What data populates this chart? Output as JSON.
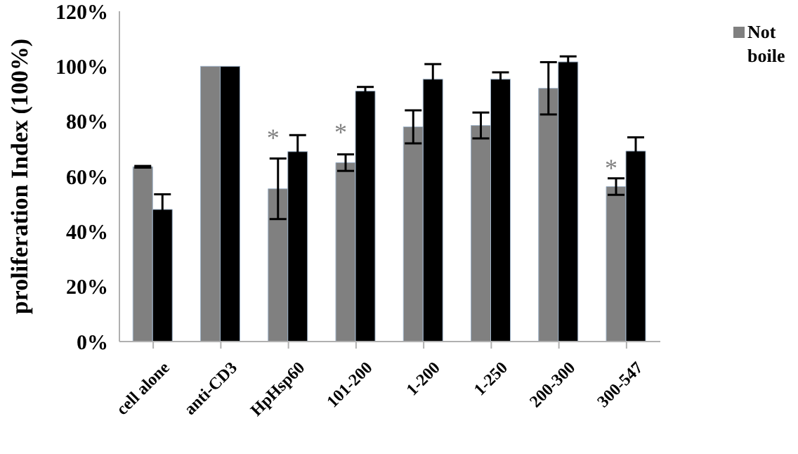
{
  "chart_data": {
    "type": "bar",
    "ylabel": "proliferation Index (100%)",
    "categories": [
      "cell alone",
      "anti-CD3",
      "HpHsp60",
      "101-200",
      "1-200",
      "1-250",
      "200-300",
      "300-547"
    ],
    "series": [
      {
        "name": "Not boile",
        "color": "#808080",
        "values": [
          63.5,
          100,
          55.5,
          65,
          78,
          78.5,
          92,
          56.3
        ],
        "errors": [
          0.3,
          null,
          11,
          3,
          6,
          4.7,
          9.5,
          3
        ]
      },
      {
        "color": "#000000",
        "values": [
          48,
          100,
          69,
          91,
          95.3,
          95.3,
          101.6,
          69.2
        ],
        "errors": [
          5.5,
          null,
          6,
          1.5,
          5.5,
          2.5,
          2,
          5
        ]
      }
    ],
    "ylim": [
      0,
      120
    ],
    "yticks": [
      {
        "value": 0,
        "label": "0%"
      },
      {
        "value": 20,
        "label": "20%"
      },
      {
        "value": 40,
        "label": "40%"
      },
      {
        "value": 60,
        "label": "60%"
      },
      {
        "value": 80,
        "label": "80%"
      },
      {
        "value": 100,
        "label": "100%"
      },
      {
        "value": 120,
        "label": "120%"
      }
    ],
    "annotations": [
      {
        "text": "*",
        "x": "HpHsp60",
        "y": 74
      },
      {
        "text": "*",
        "x": "101-200",
        "y": 76
      },
      {
        "text": "*",
        "x": "300-547",
        "y": 63
      }
    ],
    "legend": "top right",
    "grid": false
  }
}
